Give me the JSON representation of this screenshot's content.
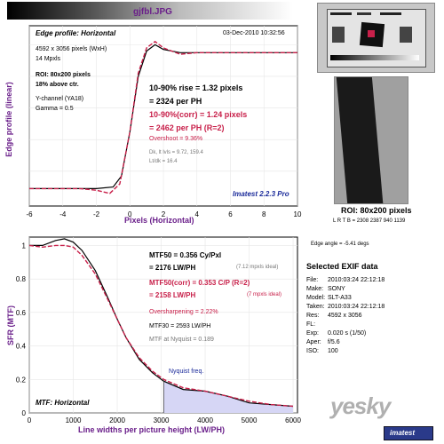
{
  "header": {
    "title": "gjfbl.JPG"
  },
  "edge": {
    "title": "Edge profile: Horizontal",
    "date": "03-Dec-2010 10:32:56",
    "pixels": "4592 x 3056 pixels (WxH)",
    "mpxls": "14 Mpxls",
    "roi": "ROI: 80x200 pixels",
    "above": "18% above ctr.",
    "channel": "Y-channel  (YA18)",
    "gamma": "Gamma = 0.5",
    "rise": "10-90% rise = 1.32 pixels",
    "rise_ph": "= 2324 per PH",
    "corr": "10-90%(corr) = 1.24 pixels",
    "corr_ph": "= 2462 per PH   (R=2)",
    "overshoot": "Overshoot = 9.36%",
    "dk": "Dk, lt lvls = 9.72, 159.4",
    "ltdk": "Lt/dk = 16.4",
    "brand": "Imatest 2.2.3 Pro",
    "ylabel": "Edge profile (linear)",
    "xlabel": "Pixels (Horizontal)",
    "xticks": [
      "-6",
      "-4",
      "-2",
      "0",
      "2",
      "4",
      "6",
      "8",
      "10"
    ]
  },
  "mtf": {
    "title": "MTF: Horizontal",
    "ylabel": "SFR (MTF)",
    "xlabel": "Line widths per picture height (LW/PH)",
    "mtf50": "MTF50 = 0.356 Cy/Pxl",
    "mtf50_lw": "= 2176 LW/PH",
    "mtf50_ideal": "(7.12 mpxls ideal)",
    "mtf50c": "MTF50(corr) = 0.353 C/P  (R=2)",
    "mtf50c_lw": "= 2158 LW/PH",
    "mtf50c_ideal": "(7 mpxls ideal)",
    "oversharp": "Oversharpening = 2.22%",
    "mtf30": "MTF30 = 2593 LW/PH",
    "nyq_mtf": "MTF at Nyquist = 0.189",
    "nyquist": "Nyquist freq.",
    "yticks": [
      "0",
      "0.2",
      "0.4",
      "0.6",
      "0.8",
      "1"
    ],
    "xticks": [
      "0",
      "1000",
      "2000",
      "3000",
      "4000",
      "5000",
      "6000"
    ]
  },
  "roi_panel": {
    "label": "ROI: 80x200 pixels",
    "lrtb": "L R T B = 2308 2387  940 1139",
    "angle": "Edge angle = -5.41 degs"
  },
  "exif": {
    "title": "Selected EXIF data",
    "rows": [
      {
        "k": "File:",
        "v": "2010:03:24 22:12:18"
      },
      {
        "k": "Make:",
        "v": "SONY"
      },
      {
        "k": "Model:",
        "v": "SLT-A33"
      },
      {
        "k": "Taken:",
        "v": "2010:03:24 22:12:18"
      },
      {
        "k": "Res:",
        "v": "4592 x 3056"
      },
      {
        "k": "FL:",
        "v": ""
      },
      {
        "k": "Exp:",
        "v": "0.020 s  (1/50)"
      },
      {
        "k": "Aper:",
        "v": "f/5.6"
      },
      {
        "k": "ISO:",
        "v": "100"
      }
    ]
  },
  "watermark": {
    "site": "yesky",
    "brand": "imatest"
  },
  "chart_data": [
    {
      "type": "line",
      "title": "Edge profile: Horizontal",
      "xlabel": "Pixels (Horizontal)",
      "ylabel": "Edge profile (linear)",
      "xlim": [
        -6,
        10
      ],
      "series": [
        {
          "x": [
            -6,
            -3,
            -2,
            -1,
            -0.5,
            0,
            0.5,
            1,
            1.5,
            2,
            3,
            4,
            6,
            8,
            10
          ],
          "y": [
            0.09,
            0.09,
            0.09,
            0.1,
            0.17,
            0.45,
            0.8,
            0.96,
            1.0,
            0.97,
            0.95,
            0.95,
            0.95,
            0.95,
            0.95
          ]
        },
        {
          "x": [
            -6,
            -3,
            -2,
            -1.2,
            -0.6,
            0,
            0.5,
            1,
            1.5,
            2,
            3,
            4,
            6,
            8,
            10
          ],
          "y": [
            0.09,
            0.09,
            0.08,
            0.06,
            0.12,
            0.45,
            0.82,
            0.98,
            1.02,
            0.98,
            0.94,
            0.95,
            0.95,
            0.95,
            0.95
          ]
        }
      ]
    },
    {
      "type": "line",
      "title": "MTF: Horizontal",
      "xlabel": "Line widths per picture height (LW/PH)",
      "ylabel": "SFR (MTF)",
      "xlim": [
        0,
        6100
      ],
      "ylim": [
        0,
        1.05
      ],
      "series": [
        {
          "x": [
            0,
            300,
            600,
            800,
            1000,
            1200,
            1500,
            1800,
            2000,
            2200,
            2500,
            2800,
            3056,
            3500,
            4000,
            4500,
            5000,
            5500,
            6000
          ],
          "y": [
            1.0,
            1.0,
            1.03,
            1.04,
            1.02,
            0.97,
            0.85,
            0.68,
            0.56,
            0.45,
            0.32,
            0.24,
            0.19,
            0.14,
            0.13,
            0.1,
            0.06,
            0.05,
            0.04
          ]
        },
        {
          "x": [
            0,
            300,
            600,
            800,
            1000,
            1200,
            1500,
            1800,
            2000,
            2200,
            2500,
            2800,
            3056,
            3500,
            4000,
            4500,
            5000,
            5500,
            6000
          ],
          "y": [
            1.0,
            0.99,
            1.0,
            1.0,
            0.99,
            0.94,
            0.83,
            0.67,
            0.56,
            0.45,
            0.33,
            0.25,
            0.2,
            0.15,
            0.13,
            0.1,
            0.07,
            0.05,
            0.04
          ]
        }
      ]
    }
  ]
}
